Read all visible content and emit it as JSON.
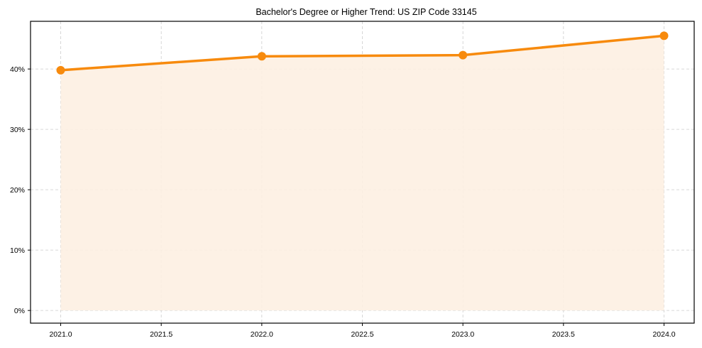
{
  "chart_data": {
    "type": "area",
    "title": "Bachelor's Degree or Higher Trend: US ZIP Code 33145",
    "xlabel": "",
    "ylabel": "",
    "x": [
      2021,
      2022,
      2023,
      2024
    ],
    "series": [
      {
        "name": "Bachelor's Degree or Higher",
        "values": [
          39.8,
          42.1,
          42.3,
          45.5
        ],
        "unit": "%"
      }
    ],
    "xticks": [
      "2021.0",
      "2021.5",
      "2022.0",
      "2022.5",
      "2023.0",
      "2023.5",
      "2024.0"
    ],
    "yticks": [
      "0%",
      "10%",
      "20%",
      "30%",
      "40%"
    ],
    "xlim": [
      2020.85,
      2024.15
    ],
    "ylim": [
      -2.1,
      47.9
    ],
    "grid": true,
    "legend": null,
    "colors": {
      "line": "#f78a0d",
      "fill": "#fdf0e2",
      "grid": "#cccccc"
    }
  }
}
